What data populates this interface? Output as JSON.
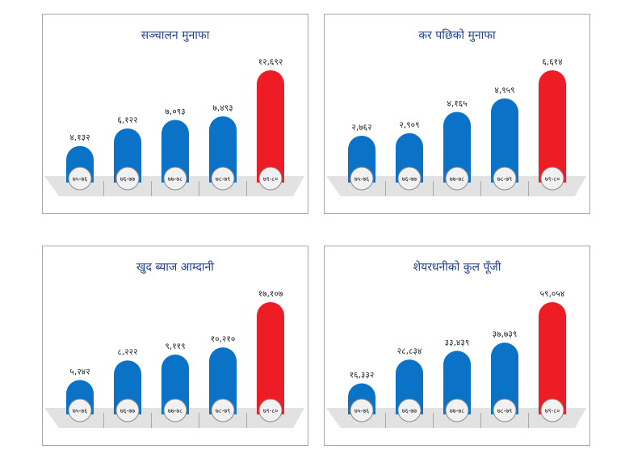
{
  "colors": {
    "bar": "#0a73c8",
    "highlight": "#ee1c24",
    "title": "#1e3f8f",
    "floor": "#e2e2e2"
  },
  "chart_data": [
    {
      "type": "bar",
      "title": "सञ्चालन मुनाफा",
      "categories": [
        "७५-७६",
        "७६-७७",
        "७७-७८",
        "७८-७९",
        "७९-८०"
      ],
      "value_labels": [
        "४,१३२",
        "६,१२२",
        "७,०९३",
        "७,४९३",
        "१२,६९२"
      ],
      "values": [
        4132,
        6122,
        7093,
        7493,
        12692
      ],
      "highlight_index": 4
    },
    {
      "type": "bar",
      "title": "कर पछिको मुनाफा",
      "categories": [
        "७५-७६",
        "७६-७७",
        "७७-७८",
        "७८-७९",
        "७९-८०"
      ],
      "value_labels": [
        "२,७६२",
        "२,९०९",
        "४,१६५",
        "४,९५९",
        "६,६१४"
      ],
      "values": [
        2762,
        2909,
        4165,
        4959,
        6614
      ],
      "highlight_index": 4
    },
    {
      "type": "bar",
      "title": "खुद ब्याज आम्दानी",
      "categories": [
        "७५-७६",
        "७६-७७",
        "७७-७८",
        "७८-७९",
        "७९-८०"
      ],
      "value_labels": [
        "५,२४२",
        "८,२२२",
        "९,११९",
        "१०,२१०",
        "१७,१०७"
      ],
      "values": [
        5242,
        8222,
        9119,
        10210,
        17107
      ],
      "highlight_index": 4
    },
    {
      "type": "bar",
      "title": "शेयरधनीको कुल पूँजी",
      "categories": [
        "७५-७६",
        "७६-७७",
        "७७-७८",
        "७८-७९",
        "७९-८०"
      ],
      "value_labels": [
        "१६,३३२",
        "२८,८३४",
        "३३,४३९",
        "३७,७३९",
        "५९,०५४"
      ],
      "values": [
        16332,
        28834,
        33439,
        37739,
        59054
      ],
      "highlight_index": 4
    }
  ]
}
